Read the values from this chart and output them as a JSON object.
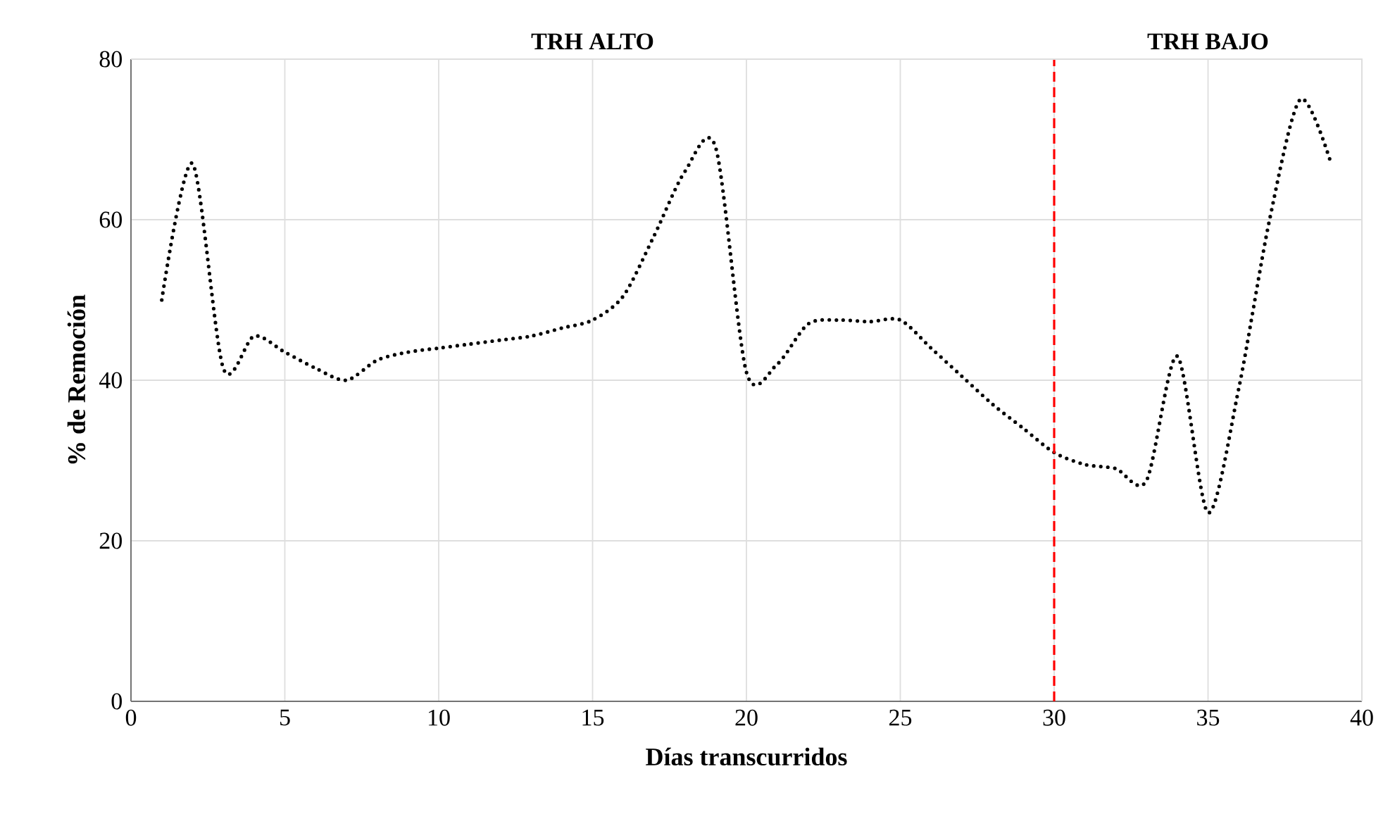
{
  "chart_data": {
    "type": "line",
    "xlabel": "Días transcurridos",
    "ylabel": "% de Remoción",
    "annotations": [
      "TRH ALTO",
      "TRH BAJO"
    ],
    "x": [
      1,
      2,
      3,
      4,
      5,
      6,
      7,
      8,
      9,
      10,
      11,
      12,
      13,
      14,
      15,
      16,
      17,
      18,
      19,
      20,
      21,
      22,
      23,
      24,
      25,
      26,
      27,
      28,
      29,
      30,
      31,
      32,
      33,
      34,
      35,
      36,
      37,
      38,
      39
    ],
    "series": [
      {
        "color": "#000000",
        "values": [
          50,
          67,
          41.5,
          45.5,
          43.5,
          41.5,
          40,
          42.5,
          43.5,
          44,
          44.5,
          45,
          45.5,
          46.5,
          47.5,
          50.5,
          58,
          66,
          69,
          41,
          42,
          47,
          47.5,
          47.3,
          47.5,
          44,
          40.5,
          37,
          34,
          31,
          29.5,
          29,
          27.5,
          43,
          23.5,
          39,
          60,
          75,
          67
        ]
      }
    ],
    "line_style": "dotted",
    "marker": "none",
    "grid": true,
    "xlim": [
      0,
      40
    ],
    "xticks": [
      0,
      5,
      10,
      15,
      20,
      25,
      30,
      35,
      40
    ],
    "ylim": [
      0,
      80
    ],
    "yticks": [
      0,
      20,
      40,
      60,
      80
    ],
    "ref_lines": [
      {
        "axis": "x",
        "value": 30,
        "color": "#ff0000",
        "line_style": "dashed"
      }
    ]
  }
}
